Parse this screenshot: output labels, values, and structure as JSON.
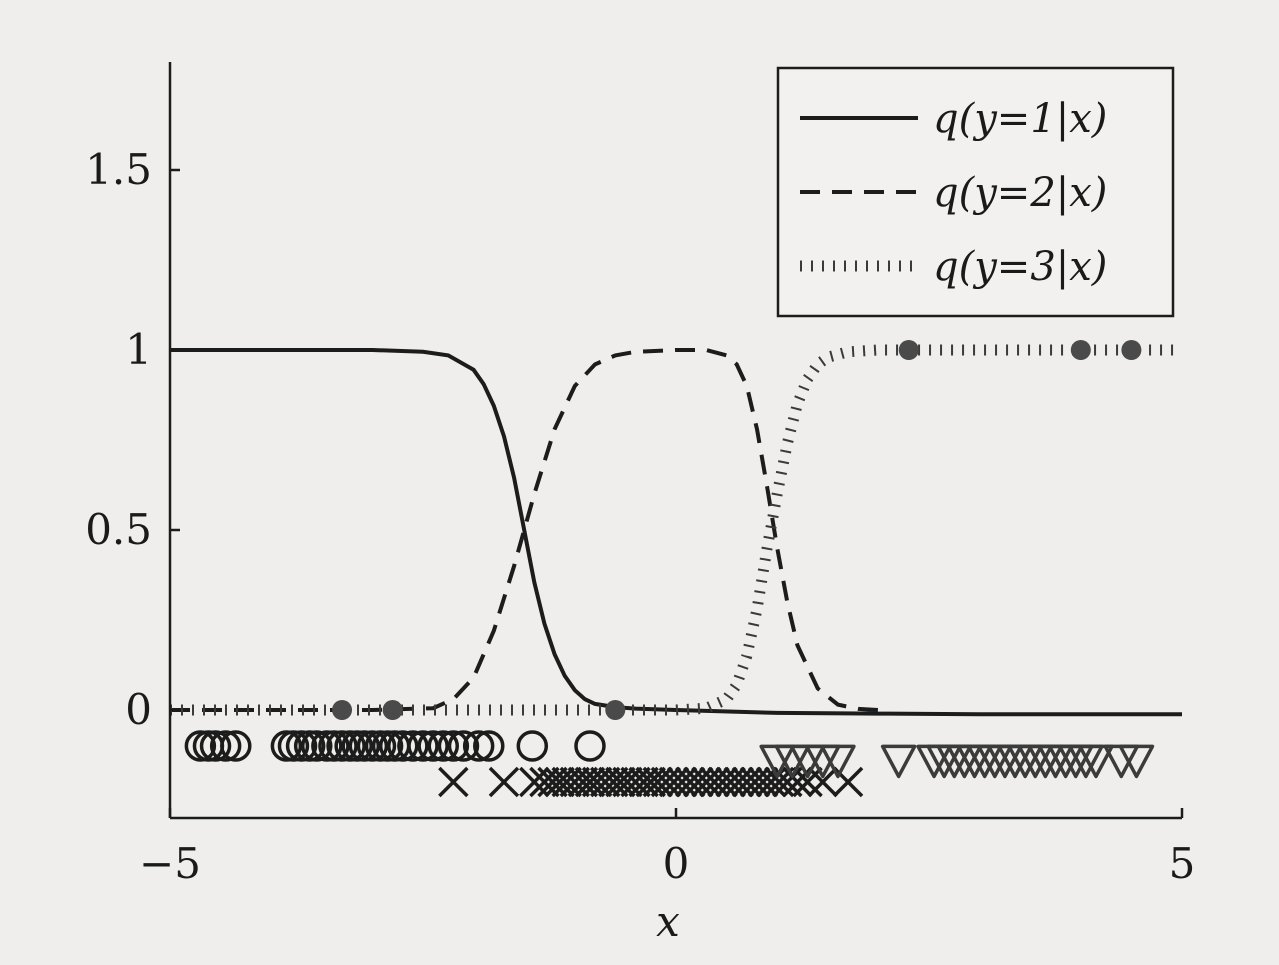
{
  "chart_data": {
    "type": "line",
    "title": "",
    "xlabel": "x",
    "ylabel": "",
    "xlim": [
      -5,
      5
    ],
    "ylim": [
      -0.3,
      1.8
    ],
    "xticks": [
      -5,
      0,
      5
    ],
    "xtick_labels": [
      "−5",
      "0",
      "5"
    ],
    "yticks": [
      0,
      0.5,
      1,
      1.5
    ],
    "ytick_labels": [
      "0",
      "0.5",
      "1",
      "1.5"
    ],
    "grid": false,
    "legend_position": "top-right",
    "series": [
      {
        "name": "q(y=1|x)",
        "style": "solid",
        "x": [
          -5,
          -4.5,
          -4,
          -3.5,
          -3,
          -2.5,
          -2.25,
          -2,
          -1.9,
          -1.8,
          -1.7,
          -1.6,
          -1.5,
          -1.4,
          -1.3,
          -1.2,
          -1.1,
          -1,
          -0.9,
          -0.8,
          -0.6,
          -0.4,
          0,
          1,
          2,
          3,
          4,
          5
        ],
        "y": [
          1,
          1,
          1,
          1,
          1,
          0.995,
          0.985,
          0.945,
          0.905,
          0.845,
          0.76,
          0.645,
          0.5,
          0.355,
          0.24,
          0.155,
          0.095,
          0.055,
          0.03,
          0.017,
          0.008,
          0.004,
          0,
          -0.008,
          -0.01,
          -0.012,
          -0.012,
          -0.012
        ]
      },
      {
        "name": "q(y=2|x)",
        "style": "dashed",
        "x": [
          -5,
          -3,
          -2.4,
          -2.2,
          -2,
          -1.8,
          -1.6,
          -1.5,
          -1.4,
          -1.2,
          -1,
          -0.8,
          -0.6,
          -0.4,
          0,
          0.3,
          0.5,
          0.6,
          0.7,
          0.8,
          0.9,
          1,
          1.1,
          1.2,
          1.4,
          1.6,
          1.8,
          2
        ],
        "y": [
          0,
          0,
          0.005,
          0.03,
          0.09,
          0.22,
          0.4,
          0.5,
          0.6,
          0.78,
          0.9,
          0.96,
          0.985,
          0.995,
          1,
          1,
          0.985,
          0.96,
          0.9,
          0.78,
          0.62,
          0.45,
          0.3,
          0.18,
          0.06,
          0.015,
          0.003,
          0
        ]
      },
      {
        "name": "q(y=3|x)",
        "style": "dotted",
        "x": [
          -5,
          -1,
          0,
          0.3,
          0.5,
          0.6,
          0.7,
          0.8,
          0.9,
          1,
          1.1,
          1.2,
          1.3,
          1.4,
          1.5,
          1.7,
          2,
          3,
          4,
          5
        ],
        "y": [
          0,
          0,
          0,
          0.005,
          0.03,
          0.07,
          0.15,
          0.28,
          0.45,
          0.6,
          0.74,
          0.85,
          0.92,
          0.96,
          0.98,
          0.995,
          1,
          1,
          1,
          1
        ]
      }
    ],
    "points_filled": {
      "x": [
        -3.3,
        -2.8,
        -0.6,
        2.3,
        4,
        4.5
      ],
      "y": [
        0,
        0,
        0,
        1,
        1,
        1
      ]
    },
    "class_markers": [
      {
        "class": 1,
        "marker": "circle",
        "y": -0.1,
        "x": [
          -4.7,
          -4.62,
          -4.55,
          -4.45,
          -4.35,
          -3.85,
          -3.78,
          -3.7,
          -3.62,
          -3.55,
          -3.45,
          -3.38,
          -3.3,
          -3.22,
          -3.15,
          -3.08,
          -3.0,
          -2.92,
          -2.85,
          -2.78,
          -2.7,
          -2.6,
          -2.5,
          -2.4,
          -2.3,
          -2.2,
          -2.1,
          -1.95,
          -1.85,
          -1.42,
          -0.85
        ]
      },
      {
        "class": 2,
        "marker": "x",
        "y": -0.2,
        "x": [
          -2.2,
          -1.7,
          -1.4,
          -1.3,
          -1.22,
          -1.15,
          -1.08,
          -1.0,
          -0.92,
          -0.85,
          -0.78,
          -0.7,
          -0.62,
          -0.55,
          -0.48,
          -0.4,
          -0.32,
          -0.25,
          -0.18,
          -0.1,
          -0.02,
          0.06,
          0.14,
          0.22,
          0.3,
          0.38,
          0.46,
          0.54,
          0.62,
          0.7,
          0.78,
          0.86,
          0.94,
          1.02,
          1.1,
          1.2,
          1.3,
          1.45,
          1.7
        ]
      },
      {
        "class": 3,
        "marker": "triangle-down",
        "y": -0.14,
        "x": [
          1.0,
          1.15,
          1.3,
          1.45,
          1.6,
          2.2,
          2.55,
          2.65,
          2.75,
          2.85,
          2.95,
          3.05,
          3.15,
          3.25,
          3.35,
          3.45,
          3.55,
          3.65,
          3.75,
          3.85,
          3.95,
          4.05,
          4.15,
          4.4,
          4.55
        ]
      }
    ]
  }
}
